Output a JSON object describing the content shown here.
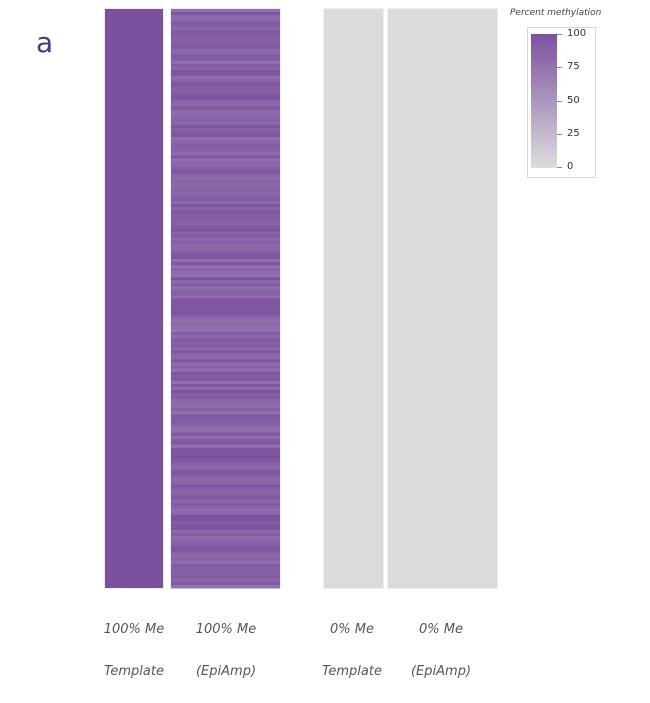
{
  "panel_label": "a",
  "colors": {
    "high": "#7b519f",
    "low": "#dcdcdc",
    "panel_label": "#3f3a8c"
  },
  "chart_data": {
    "type": "heatmap",
    "title": "",
    "columns": [
      {
        "label_line1": "100% Me",
        "label_line2": "Template",
        "mean_percent": 100,
        "pattern": "uniform"
      },
      {
        "label_line1": "100% Me",
        "label_line2": "(EpiAmp)",
        "mean_percent": 88,
        "pattern": "striped"
      },
      {
        "label_line1": "0% Me",
        "label_line2": "Template",
        "mean_percent": 1,
        "pattern": "uniform"
      },
      {
        "label_line1": "0% Me",
        "label_line2": "(EpiAmp)",
        "mean_percent": 1,
        "pattern": "uniform"
      }
    ],
    "legend": {
      "title": "Percent methylation",
      "ticks": [
        100,
        75,
        50,
        25,
        0
      ],
      "range": [
        0,
        100
      ],
      "placement": "top-right"
    }
  }
}
